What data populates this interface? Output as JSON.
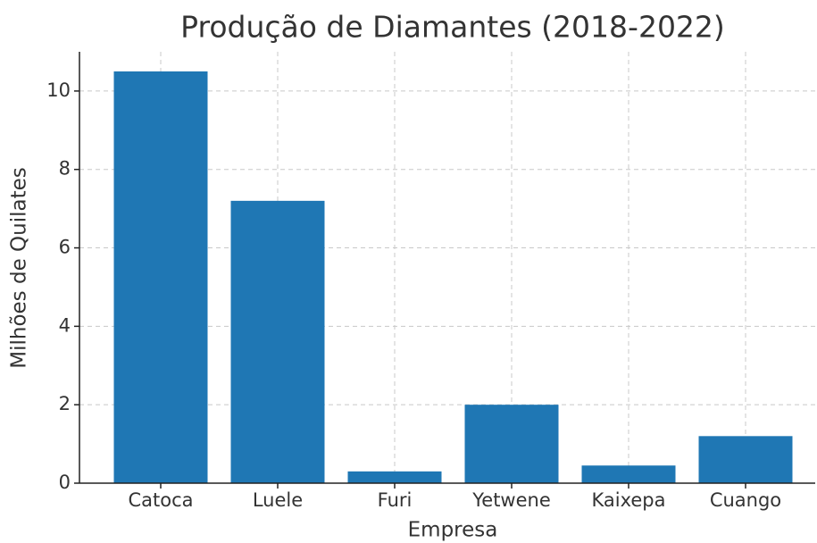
{
  "chart_data": {
    "type": "bar",
    "title": "Produção de Diamantes (2018-2022)",
    "x_label": "Empresa",
    "y_label": "Milhões de Quilates",
    "categories": [
      "Catoca",
      "Luele",
      "Furi",
      "Yetwene",
      "Kaixepa",
      "Cuango"
    ],
    "values": [
      10.5,
      7.2,
      0.3,
      2.0,
      0.45,
      1.2
    ],
    "color": "#1f77b4",
    "ylim": [
      0,
      11.0
    ],
    "yticks": [
      0,
      2,
      4,
      6,
      8,
      10
    ],
    "grid": true
  }
}
